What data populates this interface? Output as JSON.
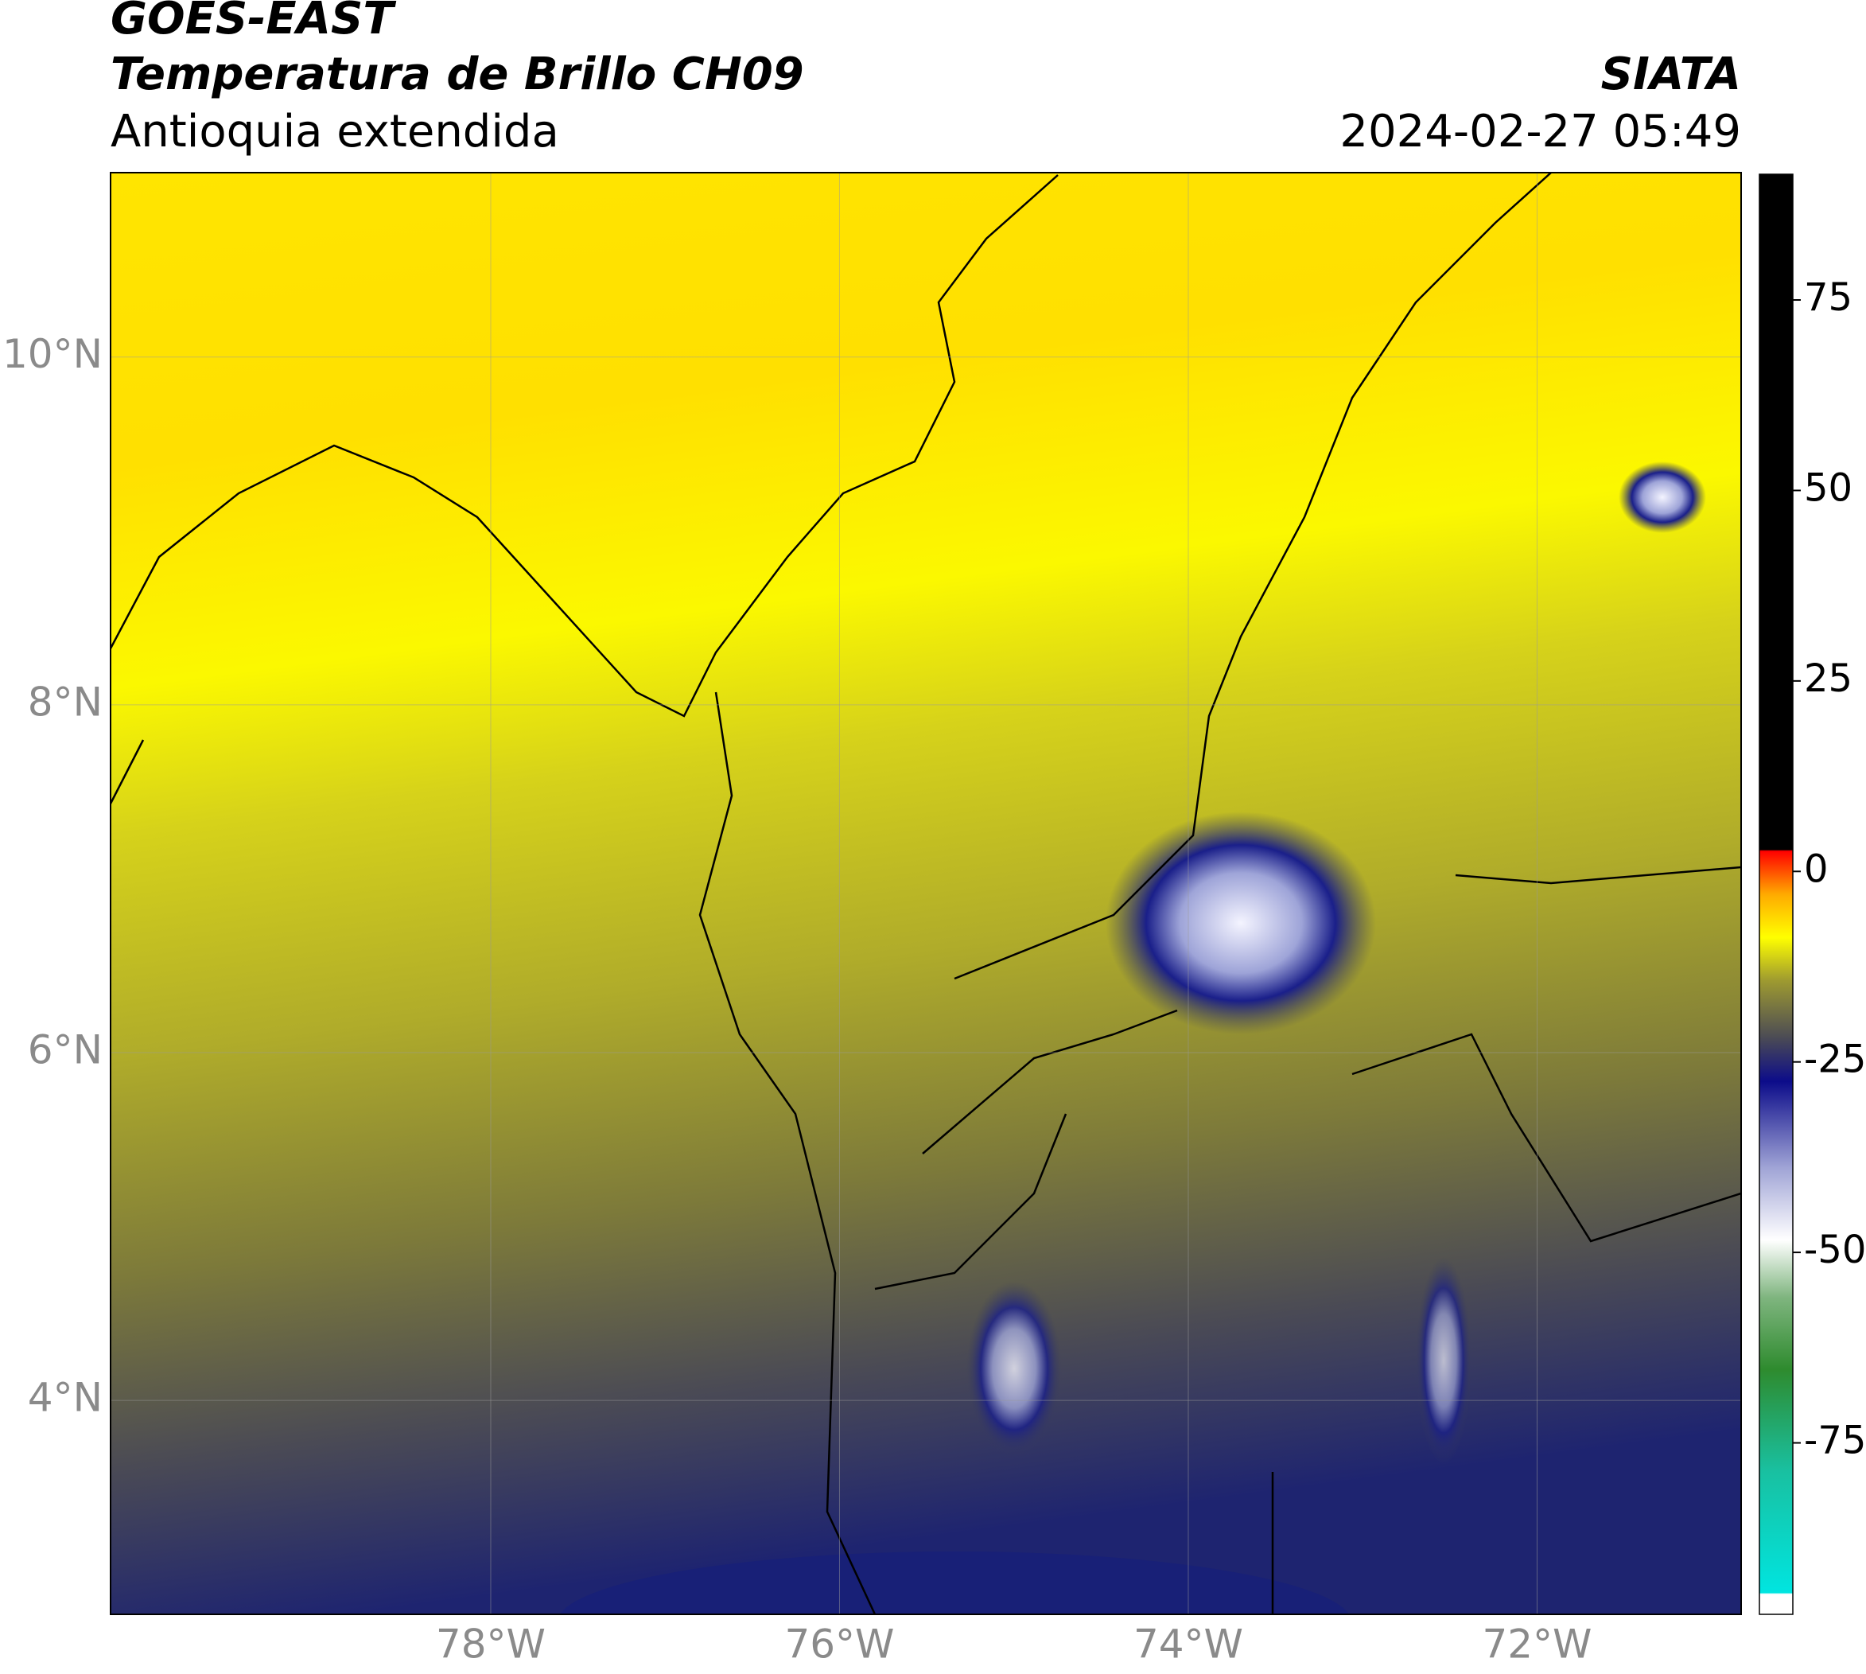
{
  "header": {
    "satellite": "GOES-EAST",
    "product": "Temperatura de Brillo CH09",
    "region": "Antioquia extendida",
    "source": "SIATA",
    "datetime": "2024-02-27 05:49"
  },
  "map": {
    "xlim": [
      -80.18,
      -70.83
    ],
    "ylim": [
      2.77,
      11.06
    ],
    "xticks": [
      {
        "value": -78,
        "label": "78°W"
      },
      {
        "value": -76,
        "label": "76°W"
      },
      {
        "value": -74,
        "label": "74°W"
      },
      {
        "value": -72,
        "label": "72°W"
      }
    ],
    "yticks": [
      {
        "value": 10,
        "label": "10°N"
      },
      {
        "value": 8,
        "label": "8°N"
      },
      {
        "value": 6,
        "label": "6°N"
      },
      {
        "value": 4,
        "label": "4°N"
      }
    ],
    "grid": true
  },
  "colorbar": {
    "lim": [
      -97.5,
      91.5
    ],
    "ticks": [
      75,
      50,
      25,
      0,
      -25,
      -50,
      -75
    ]
  }
}
